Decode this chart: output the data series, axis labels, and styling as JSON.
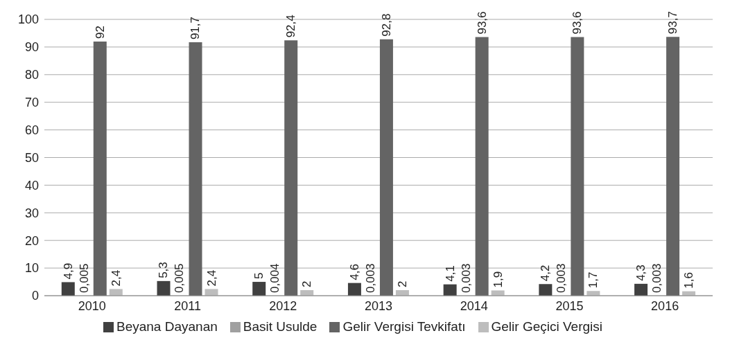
{
  "chart_data": {
    "type": "bar",
    "categories": [
      "2010",
      "2011",
      "2012",
      "2013",
      "2014",
      "2015",
      "2016"
    ],
    "series": [
      {
        "name": "Beyana Dayanan",
        "color": "#404040",
        "values": [
          4.9,
          5.3,
          5,
          4.6,
          4.1,
          4.2,
          4.3
        ],
        "value_labels": [
          "4,9",
          "5,3",
          "5",
          "4,6",
          "4,1",
          "4,2",
          "4,3"
        ]
      },
      {
        "name": "Basit Usulde",
        "color": "#a0a0a0",
        "values": [
          0.005,
          0.005,
          0.004,
          0.003,
          0.003,
          0.003,
          0.003
        ],
        "value_labels": [
          "0,005",
          "0,005",
          "0,004",
          "0,003",
          "0,003",
          "0,003",
          "0,003"
        ]
      },
      {
        "name": "Gelir Vergisi Tevkifatı",
        "color": "#646464",
        "values": [
          92,
          91.7,
          92.4,
          92.8,
          93.6,
          93.6,
          93.7
        ],
        "value_labels": [
          "92",
          "91,7",
          "92,4",
          "92,8",
          "93,6",
          "93,6",
          "93,7"
        ]
      },
      {
        "name": "Gelir Geçici Vergisi",
        "color": "#bdbdbd",
        "values": [
          2.4,
          2.4,
          2,
          2,
          1.9,
          1.7,
          1.6
        ],
        "value_labels": [
          "2,4",
          "2,4",
          "2",
          "2",
          "1,9",
          "1,7",
          "1,6"
        ]
      }
    ],
    "ylim": [
      0,
      100
    ],
    "yticks": [
      0,
      10,
      20,
      30,
      40,
      50,
      60,
      70,
      80,
      90,
      100
    ],
    "grid": "y",
    "legend": "bottom"
  }
}
